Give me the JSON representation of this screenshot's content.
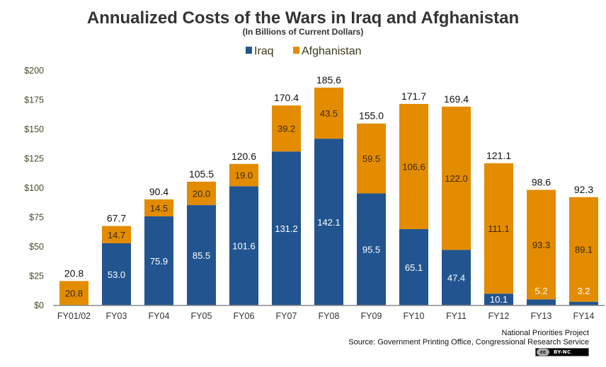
{
  "chart_data": {
    "type": "bar",
    "stacked": true,
    "title": "Annualized Costs of the Wars in Iraq and Afghanistan",
    "subtitle": "(In Billions of Current Dollars)",
    "xlabel": "",
    "ylabel": "",
    "ylim": [
      0,
      200
    ],
    "yticks": [
      0,
      25,
      50,
      75,
      100,
      125,
      150,
      175,
      200
    ],
    "ytick_labels": [
      "$0",
      "$25",
      "$50",
      "$75",
      "$100",
      "$125",
      "$150",
      "$175",
      "$200"
    ],
    "grid": false,
    "legend_position": "top-center",
    "categories": [
      "FY01/02",
      "FY03",
      "FY04",
      "FY05",
      "FY06",
      "FY07",
      "FY08",
      "FY09",
      "FY10",
      "FY11",
      "FY12",
      "FY13",
      "FY14"
    ],
    "series": [
      {
        "name": "Iraq",
        "color": "#22558F",
        "values": [
          0,
          53.0,
          75.9,
          85.5,
          101.6,
          131.2,
          142.1,
          95.5,
          65.1,
          47.4,
          10.1,
          5.2,
          3.2
        ],
        "labels": [
          null,
          "53.0",
          "75.9",
          "85.5",
          "101.6",
          "131.2",
          "142.1",
          "95.5",
          "65.1",
          "47.4",
          "10.1",
          "5.2",
          "3.2"
        ]
      },
      {
        "name": "Afghanistan",
        "color": "#E38C00",
        "values": [
          20.8,
          14.7,
          14.5,
          20.0,
          19.0,
          39.2,
          43.5,
          59.5,
          106.6,
          122.0,
          111.1,
          93.3,
          89.1
        ],
        "labels": [
          "20.8",
          "14.7",
          "14.5",
          "20.0",
          "19.0",
          "39.2",
          "43.5",
          "59.5",
          "106.6",
          "122.0",
          "111.1",
          "93.3",
          "89.1"
        ]
      }
    ],
    "totals": [
      20.8,
      67.7,
      90.4,
      105.5,
      120.6,
      170.4,
      185.6,
      155.0,
      171.7,
      169.4,
      121.1,
      98.6,
      92.3
    ],
    "total_labels": [
      "20.8",
      "67.7",
      "90.4",
      "105.5",
      "120.6",
      "170.4",
      "185.6",
      "155.0",
      "171.7",
      "169.4",
      "121.1",
      "98.6",
      "92.3"
    ]
  },
  "footer": {
    "organization": "National Priorities Project",
    "source": "Source: Government Printing  Office, Congressional Research Service",
    "license_symbol": "cc",
    "license": "BY-NC"
  }
}
